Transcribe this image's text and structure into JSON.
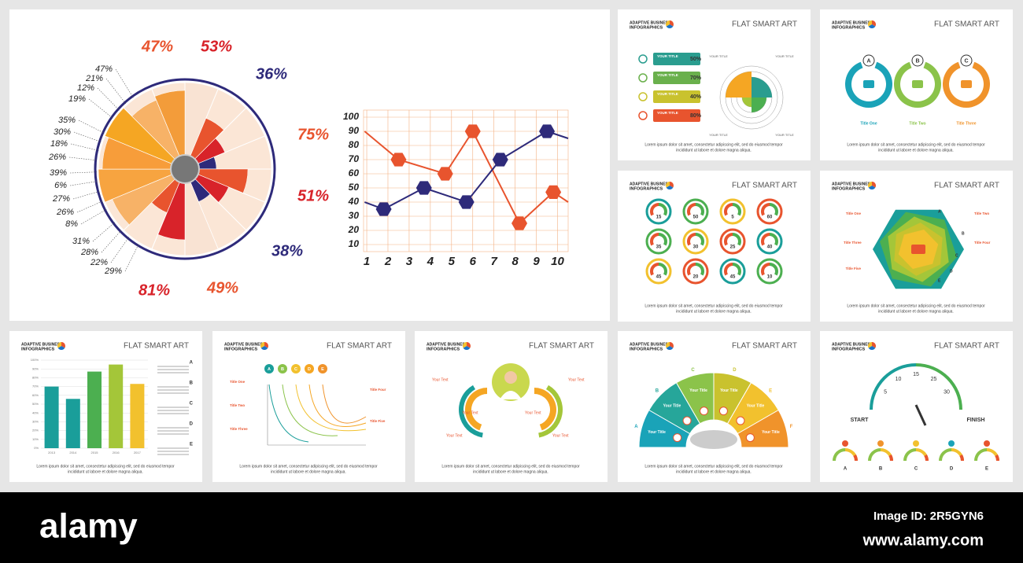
{
  "brand": [
    "ADAPTIVE BUSINESS",
    "INFOGRAPHICS"
  ],
  "slide_title": "FLAT SMART ART",
  "footer": [
    "Lorem ipsum dolor sit amet, consectetur adipiscing elit, sed do eiusmod tempor",
    "incididunt ut labore et dolore magna aliqua."
  ],
  "radial": {
    "outer_labels": [
      "47%",
      "53%",
      "36%",
      "75%",
      "51%",
      "38%",
      "49%",
      "81%"
    ],
    "inner_labels": [
      "47%",
      "21%",
      "12%",
      "19%",
      "35%",
      "30%",
      "18%",
      "26%",
      "39%",
      "6%",
      "27%",
      "26%",
      "8%",
      "31%",
      "28%",
      "22%",
      "29%"
    ]
  },
  "chart_data": [
    {
      "type": "line",
      "xlim": [
        0.85,
        10.5
      ],
      "xticks": [
        1,
        2,
        3,
        4,
        5,
        6,
        7,
        8,
        9,
        10
      ],
      "ylim": [
        5,
        105
      ],
      "yticks": [
        10,
        20,
        30,
        40,
        50,
        60,
        70,
        80,
        90,
        100
      ],
      "grid": true,
      "series": [
        {
          "color": "#e8542e",
          "x": [
            0.9,
            2.5,
            4.7,
            6.0,
            8.2,
            9.8,
            10.5
          ],
          "values": [
            90,
            70,
            60,
            90,
            25,
            47,
            40
          ]
        },
        {
          "color": "#2e2a7a",
          "x": [
            0.9,
            1.8,
            3.7,
            5.7,
            7.3,
            9.5,
            10.5
          ],
          "values": [
            40,
            35,
            50,
            40,
            70,
            90,
            85
          ]
        }
      ]
    },
    {
      "type": "bar",
      "categories": [
        "2013",
        "2014",
        "2015",
        "2016",
        "2017"
      ],
      "values": [
        70,
        56,
        87,
        95,
        73
      ],
      "colors": [
        "#1a9e9a",
        "#1a9e9a",
        "#4caf50",
        "#a4c639",
        "#f2c12e"
      ],
      "ylim": [
        0,
        100
      ],
      "yticks": [
        {
          "value": 0,
          "label": "0%"
        },
        {
          "value": 10,
          "label": "10%"
        },
        {
          "value": 20,
          "label": "20%"
        },
        {
          "value": 30,
          "label": "30%"
        },
        {
          "value": 40,
          "label": "40%"
        },
        {
          "value": 50,
          "label": "50%"
        },
        {
          "value": 60,
          "label": "60%"
        },
        {
          "value": 70,
          "label": "70%"
        },
        {
          "value": 80,
          "label": "80%"
        },
        {
          "value": 90,
          "label": "90%"
        },
        {
          "value": 100,
          "label": "100%"
        }
      ],
      "grid": true,
      "side_letters": [
        "A",
        "B",
        "C",
        "D",
        "E"
      ]
    }
  ],
  "progress": {
    "items": [
      "YOUR TITLE",
      "YOUR TITLE",
      "YOUR TITLE",
      "YOUR TITLE"
    ],
    "values": [
      "50%",
      "70%",
      "40%",
      "80%"
    ],
    "corner_titles": [
      "YOUR TITLE",
      "YOUR TITLE",
      "YOUR TITLE",
      "YOUR TITLE"
    ]
  },
  "cycle": {
    "letters": [
      "A",
      "B",
      "C"
    ],
    "titles": [
      "Title One",
      "Title Two",
      "Title Three"
    ]
  },
  "gauges": {
    "values": [
      "15",
      "50",
      "5",
      "60",
      "35",
      "30",
      "25",
      "40",
      "45",
      "20",
      "45",
      "10"
    ]
  },
  "hexagon": {
    "letters": [
      "A",
      "B",
      "C",
      "D",
      "E"
    ],
    "titles": [
      "Title One",
      "Title Two",
      "Title Three",
      "Title Four",
      "Title Five"
    ]
  },
  "decay": {
    "letters": [
      "A",
      "B",
      "C",
      "D",
      "E"
    ],
    "titles": [
      "Title One",
      "Title Two",
      "Title Three",
      "Title Four",
      "Title Five"
    ]
  },
  "person": {
    "labels": [
      "Your Text",
      "Your Text",
      "Your Text",
      "Your Text",
      "Your Text",
      "Your Text"
    ]
  },
  "semicircle": {
    "letters": [
      "A",
      "B",
      "C",
      "D",
      "E",
      "F"
    ],
    "labels": [
      "Your Title",
      "Your Title",
      "Your Title",
      "Your Title",
      "Your Title",
      "Your Title"
    ]
  },
  "speedometer": {
    "ticks": [
      "5",
      "10",
      "15",
      "25",
      "30"
    ],
    "start": "START",
    "finish": "FINISH",
    "letters": [
      "A",
      "B",
      "C",
      "D",
      "E"
    ]
  },
  "watermark": {
    "logo": "alamy",
    "image_id": "Image ID: 2R5GYN6",
    "url": "www.alamy.com"
  }
}
